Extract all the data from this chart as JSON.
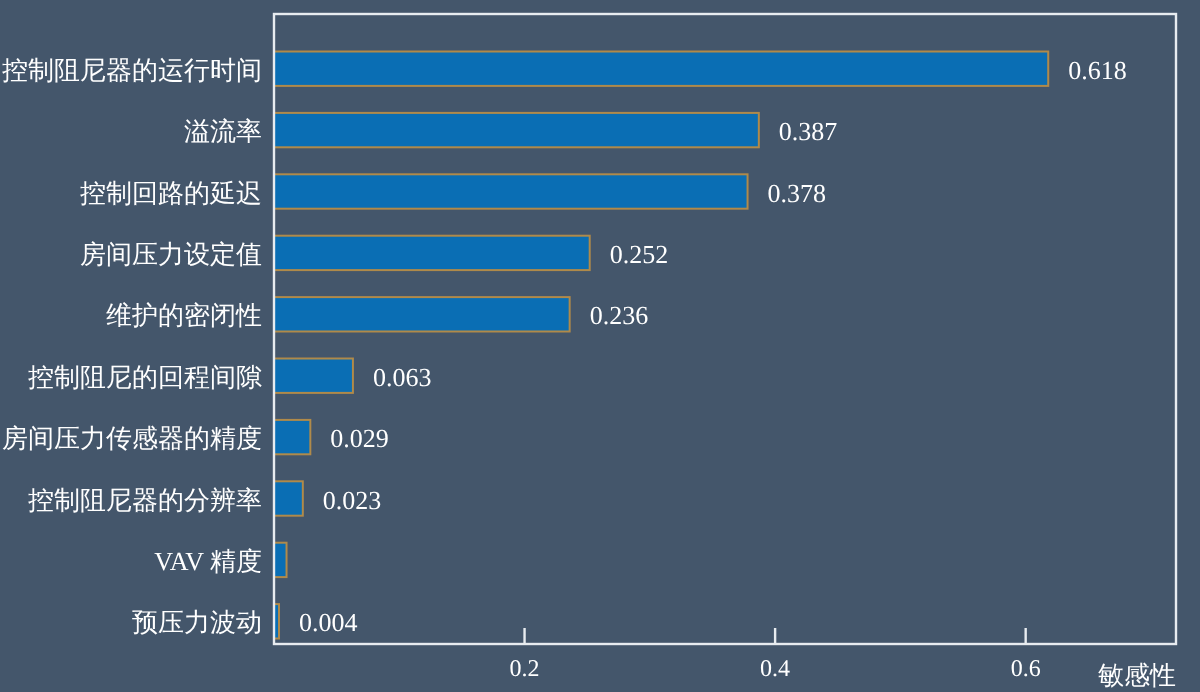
{
  "chart_data": {
    "type": "bar",
    "orientation": "horizontal",
    "xlabel": "敏感性",
    "categories": [
      "控制阻尼器的运行时间",
      "溢流率",
      "控制回路的延迟",
      "房间压力设定值",
      "维护的密闭性",
      "控制阻尼的回程间隙",
      "房间压力传感器的精度",
      "控制阻尼器的分辨率",
      "VAV 精度",
      "预压力波动"
    ],
    "values": [
      0.618,
      0.387,
      0.378,
      0.252,
      0.236,
      0.063,
      0.029,
      0.023,
      0.01,
      0.004
    ],
    "value_labels": [
      "0.618",
      "0.387",
      "0.378",
      "0.252",
      "0.236",
      "0.063",
      "0.029",
      "0.023",
      null,
      "0.004"
    ],
    "color": "#0a6eb4",
    "xlim": [
      0,
      0.72
    ],
    "xticks": [
      0.2,
      0.4,
      0.6
    ]
  }
}
